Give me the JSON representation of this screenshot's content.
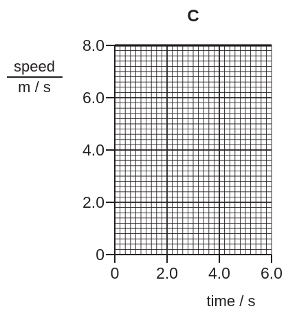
{
  "chart_data": {
    "type": "line",
    "title": "C",
    "xlabel": "time / s",
    "ylabel_top": "speed",
    "ylabel_bottom": "m / s",
    "xlim": [
      0,
      6.0
    ],
    "ylim": [
      0,
      8.0
    ],
    "x_ticks": [
      {
        "value": 0,
        "label": "0"
      },
      {
        "value": 2.0,
        "label": "2.0"
      },
      {
        "value": 4.0,
        "label": "4.0"
      },
      {
        "value": 6.0,
        "label": "6.0"
      }
    ],
    "y_ticks": [
      {
        "value": 0,
        "label": "0"
      },
      {
        "value": 2.0,
        "label": "2.0"
      },
      {
        "value": 4.0,
        "label": "4.0"
      },
      {
        "value": 6.0,
        "label": "6.0"
      },
      {
        "value": 8.0,
        "label": "8.0"
      }
    ],
    "grid": true,
    "minor_step_x": 0.2,
    "minor_step_y": 0.2,
    "series": [
      {
        "values": [
          8.0,
          8.0
        ],
        "x": [
          0,
          6.0
        ]
      }
    ],
    "colors": {
      "ink": "#231f20",
      "grid": "#231f20"
    }
  }
}
